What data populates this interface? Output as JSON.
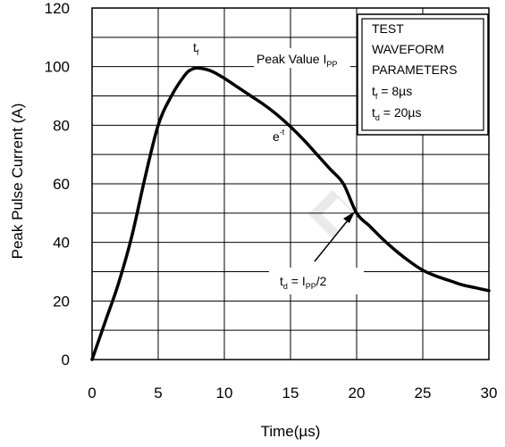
{
  "chart_data": {
    "type": "line",
    "xlabel": "Time(µs)",
    "ylabel": "Peak Pulse Current (A)",
    "xlim": [
      0,
      30
    ],
    "ylim": [
      0,
      120
    ],
    "x_ticks": [
      "0",
      "5",
      "10",
      "15",
      "20",
      "25",
      "30"
    ],
    "y_ticks": [
      "0",
      "20",
      "40",
      "60",
      "80",
      "100",
      "120"
    ],
    "grid": true,
    "series": [
      {
        "x": [
          0,
          1,
          2,
          3,
          4,
          5,
          6,
          7,
          7.5,
          8,
          9,
          10,
          11,
          12,
          13,
          14,
          15,
          16,
          17,
          18,
          19,
          20,
          21,
          22,
          23,
          24,
          25,
          26,
          27,
          28,
          29,
          30
        ],
        "y": [
          0,
          13,
          26,
          42,
          62,
          80,
          90,
          97,
          99,
          99.5,
          98.5,
          96,
          93,
          90,
          87,
          83.5,
          79.5,
          75,
          70,
          65,
          60,
          50,
          45.5,
          41,
          37,
          33.5,
          30.5,
          28.5,
          27,
          25.5,
          24.5,
          23.5
        ]
      }
    ],
    "annotations": {
      "tf": {
        "main": "t",
        "sub": "f"
      },
      "peak": {
        "main": "Peak Value I",
        "sub": "PP"
      },
      "exp": {
        "main": "e",
        "sup": "-t"
      },
      "td": {
        "main1": "t",
        "sub1": "d",
        "main2": " = I",
        "sub2": "PP",
        "main3": "/2"
      }
    },
    "params_box": {
      "line1": "TEST",
      "line2": "WAVEFORM",
      "line3": "PARAMETERS",
      "tf": {
        "main": "t",
        "sub": "f",
        "rest": " = 8µs"
      },
      "td": {
        "main": "t",
        "sub": "d",
        "rest": " = 20µs"
      }
    }
  }
}
